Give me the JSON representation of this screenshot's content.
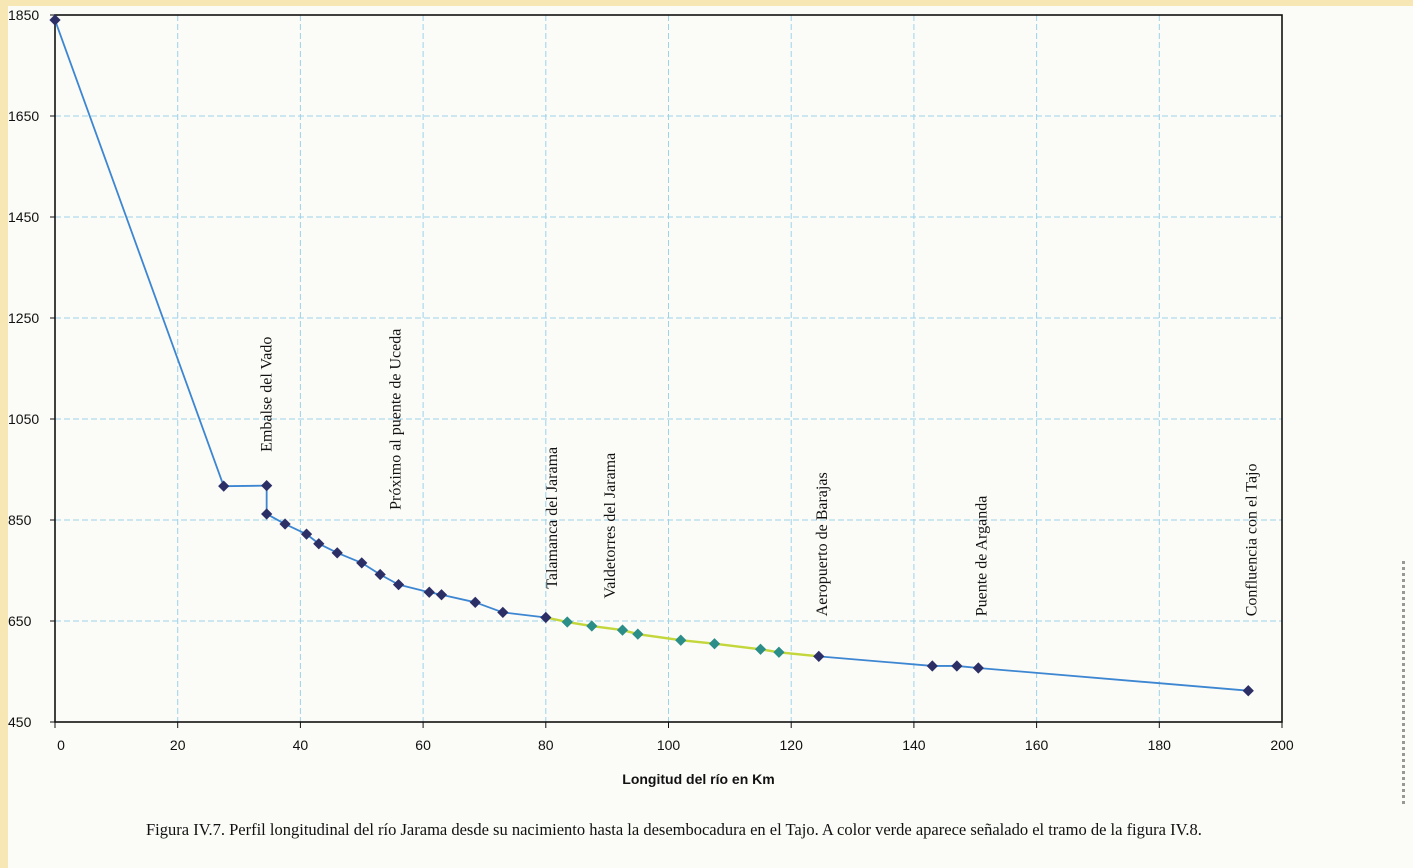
{
  "chart_data": {
    "type": "line",
    "title": "",
    "xlabel": "Longitud del río en Km",
    "ylabel": "",
    "xlim": [
      0,
      200
    ],
    "ylim": [
      450,
      1850
    ],
    "x_ticks": [
      0,
      20,
      40,
      60,
      80,
      100,
      120,
      140,
      160,
      180,
      200
    ],
    "y_ticks": [
      450,
      650,
      850,
      1050,
      1250,
      1450,
      1650,
      1850
    ],
    "grid": true,
    "legend": "none",
    "colors": {
      "line": "#3d86d2",
      "highlight": "#c3d63a",
      "marker": "#2c2f66",
      "marker_highlight": "#2b8e88",
      "grid": "#9dd3ea"
    },
    "series": [
      {
        "name": "",
        "points": [
          [
            0,
            1840
          ],
          [
            27.5,
            917
          ],
          [
            34.5,
            918
          ],
          [
            34.5,
            862
          ],
          [
            37.5,
            842
          ],
          [
            41,
            822
          ],
          [
            43,
            803
          ],
          [
            46,
            785
          ],
          [
            50,
            765
          ],
          [
            53,
            742
          ],
          [
            56,
            722
          ],
          [
            61,
            707
          ],
          [
            63,
            702
          ],
          [
            68.5,
            687
          ],
          [
            73,
            667
          ],
          [
            80,
            657
          ],
          [
            83.5,
            648
          ],
          [
            87.5,
            640
          ],
          [
            92.5,
            632
          ],
          [
            95,
            624
          ],
          [
            102,
            612
          ],
          [
            107.5,
            605
          ],
          [
            115,
            594
          ],
          [
            118,
            588
          ],
          [
            124.5,
            580
          ],
          [
            143,
            561
          ],
          [
            147,
            561
          ],
          [
            150.5,
            557
          ],
          [
            194.5,
            512
          ]
        ]
      }
    ],
    "highlight_x_range": [
      80,
      124.5
    ],
    "annotations": [
      {
        "text": "Embalse del Vado",
        "x": 34.5
      },
      {
        "text": "Próximo al puente de Uceda",
        "x": 55.5
      },
      {
        "text": "Talamanca del Jarama",
        "x": 81
      },
      {
        "text": "Valdetorres del Jarama",
        "x": 90.5
      },
      {
        "text": "Aeropuerto de Barajas",
        "x": 125
      },
      {
        "text": "Puente de Arganda",
        "x": 151
      },
      {
        "text": "Confluencia con el Tajo",
        "x": 195
      }
    ]
  },
  "caption": "Figura IV.7. Perfil longitudinal del río Jarama desde su nacimiento hasta la desembocadura en el Tajo. A color verde aparece señalado el tramo de la figura IV.8."
}
